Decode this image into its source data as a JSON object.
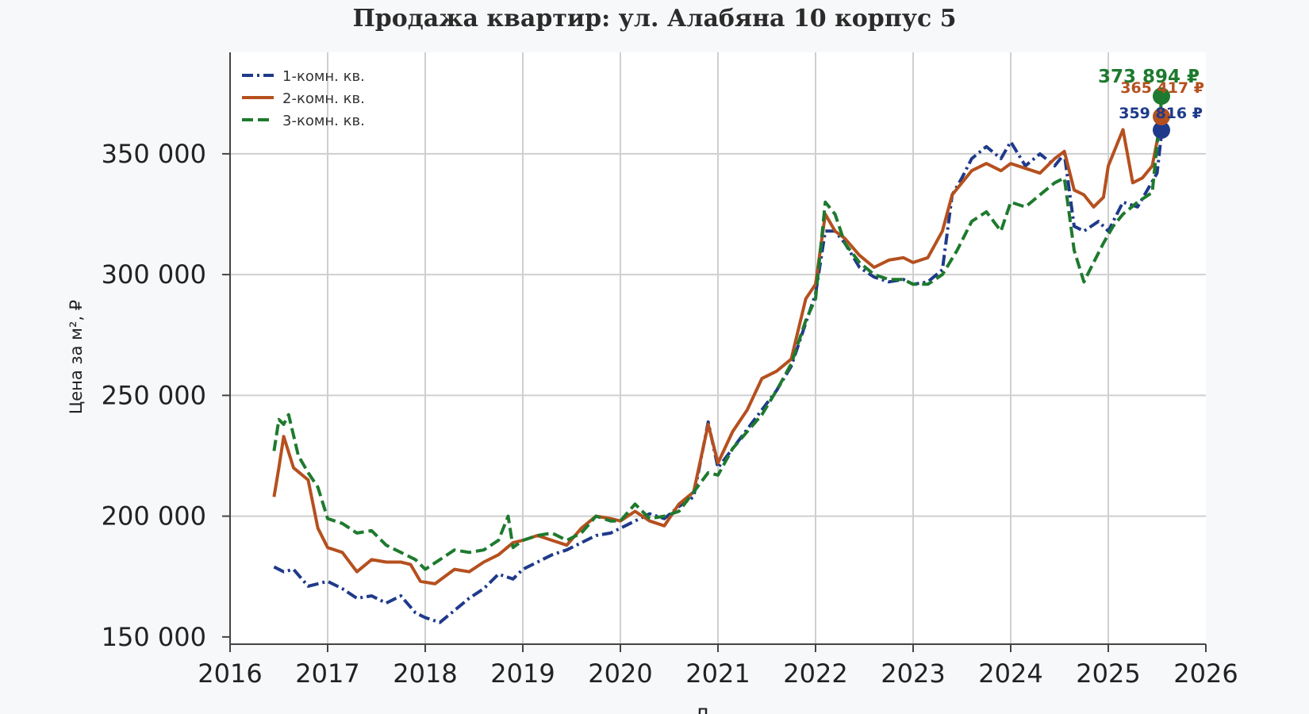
{
  "chart_data": {
    "type": "line",
    "title": "Продажа квартир: ул. Алабяна 10 корпус 5",
    "xlabel": "Д",
    "ylabel": "Цена за м², ₽",
    "xlim": [
      2016,
      2026
    ],
    "ylim": [
      147000,
      392000
    ],
    "x_ticks": [
      "2016",
      "2017",
      "2018",
      "2019",
      "2020",
      "2021",
      "2022",
      "2023",
      "2024",
      "2025",
      "2026"
    ],
    "y_ticks": [
      "150 000",
      "200 000",
      "250 000",
      "300 000",
      "350 000"
    ],
    "y_tick_values": [
      150000,
      200000,
      250000,
      300000,
      350000
    ],
    "grid": true,
    "legend_position": "top-left",
    "series": [
      {
        "name": "1-комн. кв.",
        "color": "#1f3a8a",
        "dash": "dashdot",
        "x": [
          2016.45,
          2016.55,
          2016.65,
          2016.8,
          2017.0,
          2017.15,
          2017.3,
          2017.45,
          2017.6,
          2017.75,
          2017.9,
          2018.0,
          2018.15,
          2018.3,
          2018.45,
          2018.6,
          2018.75,
          2018.9,
          2019.0,
          2019.15,
          2019.3,
          2019.45,
          2019.6,
          2019.75,
          2019.9,
          2020.0,
          2020.15,
          2020.3,
          2020.45,
          2020.6,
          2020.75,
          2020.9,
          2021.0,
          2021.15,
          2021.3,
          2021.45,
          2021.6,
          2021.75,
          2021.9,
          2022.0,
          2022.1,
          2022.2,
          2022.3,
          2022.45,
          2022.6,
          2022.75,
          2022.9,
          2023.0,
          2023.15,
          2023.3,
          2023.4,
          2023.5,
          2023.6,
          2023.75,
          2023.9,
          2024.0,
          2024.15,
          2024.3,
          2024.45,
          2024.55,
          2024.65,
          2024.75,
          2024.9,
          2025.0,
          2025.15,
          2025.3,
          2025.4,
          2025.5,
          2025.55
        ],
        "values": [
          179000,
          177000,
          178000,
          171000,
          173000,
          170000,
          166000,
          167000,
          164000,
          167000,
          160000,
          158000,
          156000,
          161000,
          166000,
          170000,
          176000,
          174000,
          178000,
          181000,
          184000,
          186000,
          189000,
          192000,
          193000,
          195000,
          198000,
          201000,
          199000,
          204000,
          208000,
          239000,
          220000,
          228000,
          236000,
          244000,
          252000,
          262000,
          280000,
          292000,
          318000,
          318000,
          313000,
          303000,
          299000,
          297000,
          298000,
          296000,
          297000,
          302000,
          333000,
          340000,
          348000,
          353000,
          348000,
          355000,
          345000,
          350000,
          345000,
          350000,
          320000,
          318000,
          322000,
          318000,
          330000,
          328000,
          335000,
          342000,
          359816
        ]
      },
      {
        "name": "2-комн. кв.",
        "color": "#b5501f",
        "dash": "solid",
        "x": [
          2016.45,
          2016.5,
          2016.55,
          2016.65,
          2016.8,
          2016.9,
          2017.0,
          2017.15,
          2017.3,
          2017.45,
          2017.6,
          2017.75,
          2017.85,
          2017.95,
          2018.1,
          2018.3,
          2018.45,
          2018.6,
          2018.75,
          2018.9,
          2019.0,
          2019.15,
          2019.3,
          2019.45,
          2019.6,
          2019.75,
          2019.9,
          2020.0,
          2020.15,
          2020.3,
          2020.45,
          2020.6,
          2020.75,
          2020.9,
          2021.0,
          2021.15,
          2021.3,
          2021.45,
          2021.6,
          2021.75,
          2021.9,
          2022.0,
          2022.1,
          2022.2,
          2022.3,
          2022.45,
          2022.6,
          2022.75,
          2022.9,
          2023.0,
          2023.15,
          2023.3,
          2023.4,
          2023.5,
          2023.6,
          2023.75,
          2023.9,
          2024.0,
          2024.15,
          2024.3,
          2024.45,
          2024.55,
          2024.65,
          2024.75,
          2024.85,
          2024.95,
          2025.0,
          2025.15,
          2025.25,
          2025.35,
          2025.45,
          2025.55
        ],
        "values": [
          208000,
          220000,
          233000,
          220000,
          215000,
          195000,
          187000,
          185000,
          177000,
          182000,
          181000,
          181000,
          180000,
          173000,
          172000,
          178000,
          177000,
          181000,
          184000,
          189000,
          190000,
          192000,
          190000,
          188000,
          195000,
          200000,
          199000,
          198000,
          202000,
          198000,
          196000,
          205000,
          210000,
          238000,
          222000,
          235000,
          244000,
          257000,
          260000,
          265000,
          290000,
          296000,
          325000,
          318000,
          315000,
          308000,
          303000,
          306000,
          307000,
          305000,
          307000,
          318000,
          333000,
          338000,
          343000,
          346000,
          343000,
          346000,
          344000,
          342000,
          348000,
          351000,
          335000,
          333000,
          328000,
          332000,
          345000,
          360000,
          338000,
          340000,
          345000,
          365417
        ]
      },
      {
        "name": "3-комн. кв.",
        "color": "#1e7a2e",
        "dash": "dashed",
        "x": [
          2016.45,
          2016.5,
          2016.55,
          2016.6,
          2016.7,
          2016.8,
          2016.9,
          2017.0,
          2017.15,
          2017.3,
          2017.45,
          2017.6,
          2017.75,
          2017.9,
          2018.0,
          2018.15,
          2018.3,
          2018.45,
          2018.6,
          2018.75,
          2018.85,
          2018.9,
          2019.0,
          2019.15,
          2019.3,
          2019.45,
          2019.6,
          2019.75,
          2019.9,
          2020.0,
          2020.15,
          2020.3,
          2020.45,
          2020.6,
          2020.75,
          2020.9,
          2021.0,
          2021.15,
          2021.3,
          2021.45,
          2021.6,
          2021.75,
          2021.9,
          2022.0,
          2022.1,
          2022.2,
          2022.3,
          2022.45,
          2022.6,
          2022.75,
          2022.9,
          2023.0,
          2023.15,
          2023.3,
          2023.45,
          2023.6,
          2023.75,
          2023.9,
          2024.0,
          2024.15,
          2024.3,
          2024.45,
          2024.55,
          2024.65,
          2024.75,
          2024.85,
          2024.95,
          2025.05,
          2025.15,
          2025.3,
          2025.45,
          2025.55
        ],
        "values": [
          227000,
          240000,
          238000,
          242000,
          225000,
          218000,
          212000,
          199000,
          197000,
          193000,
          194000,
          188000,
          185000,
          182000,
          178000,
          182000,
          186000,
          185000,
          186000,
          190000,
          200000,
          187000,
          190000,
          192000,
          193000,
          190000,
          193000,
          200000,
          198000,
          198000,
          205000,
          199000,
          200000,
          202000,
          210000,
          218000,
          217000,
          228000,
          235000,
          242000,
          252000,
          263000,
          281000,
          290000,
          330000,
          325000,
          313000,
          305000,
          300000,
          298000,
          298000,
          296000,
          296000,
          300000,
          310000,
          322000,
          326000,
          318000,
          330000,
          328000,
          333000,
          338000,
          340000,
          310000,
          297000,
          305000,
          313000,
          320000,
          325000,
          330000,
          334000,
          373894
        ]
      }
    ],
    "end_labels": [
      {
        "text": "373 894 ₽",
        "color": "#1e7a2e"
      },
      {
        "text": "365 417 ₽",
        "color": "#b5501f"
      },
      {
        "text": "359 816 ₽",
        "color": "#1f3a8a"
      }
    ]
  }
}
